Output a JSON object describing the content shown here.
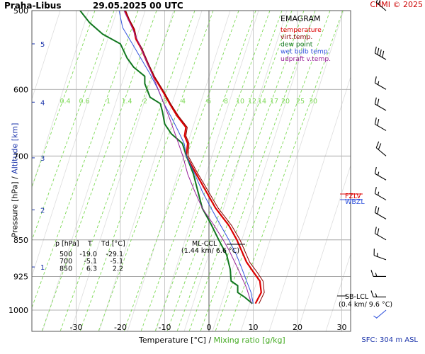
{
  "header": {
    "station": "Praha-Libus",
    "datetime": "29.05.2025 00 UTC",
    "credit": "CHMI © 2025"
  },
  "axes": {
    "pressure_label": "Pressure [hPa]",
    "altitude_label": "Altitude [km]",
    "temperature_label": "Temperature [°C]",
    "mixing_ratio_label": "Mixing ratio [g/kg]",
    "separator": "/"
  },
  "footer": {
    "surface": "SFC: 304 m ASL"
  },
  "table": {
    "headers": [
      "p [hPa]",
      "T",
      "Td [°C]"
    ],
    "rows": [
      [
        "500",
        "-19.0",
        "-29.1"
      ],
      [
        "700",
        "-5.1",
        "-5.1"
      ],
      [
        "850",
        "6.3",
        "2.2"
      ]
    ]
  },
  "annotations": {
    "ml_ccl": "ML-CCL",
    "ml_ccl_detail": "(1.44 km/ 6.6 °C)",
    "sb_lcl": "SB-LCL",
    "sb_lcl_detail": "(0.4 km/ 9.6 °C)",
    "fzl": "FZLV",
    "wbzl": "WBZL"
  },
  "colors": {
    "temperature": "#dd0000",
    "virtual_temperature": "#880000",
    "dew_point": "#11771f",
    "wet_bulb": "#3355dd",
    "updraft": "#992299",
    "mixing_ratio": "#7ed957",
    "grid": "#999999",
    "altitude": "#1a33aa"
  },
  "chart_data": {
    "type": "line",
    "title": "EMAGRAM",
    "xlabel": "Temperature [°C]",
    "ylabel": "Pressure [hPa]",
    "xlim": [
      -35,
      35
    ],
    "ylim": [
      1000,
      500
    ],
    "x_ticks": [
      -30,
      -20,
      -10,
      0,
      10,
      20,
      30
    ],
    "pressure_ticks": [
      500,
      600,
      700,
      850,
      925,
      1000
    ],
    "altitude_ticks": [
      {
        "label": "1",
        "p": 905
      },
      {
        "label": "2",
        "p": 793
      },
      {
        "label": "3",
        "p": 703
      },
      {
        "label": "4",
        "p": 618
      },
      {
        "label": "5",
        "p": 540
      }
    ],
    "mixing_ratio_labels": [
      "0.4",
      "0.6",
      "1",
      "1.4",
      "2",
      "3",
      "4",
      "6",
      "8",
      "10",
      "12",
      "14",
      "17",
      "20",
      "25",
      "30"
    ],
    "legend": [
      {
        "name": "temperature",
        "color": "#dd0000"
      },
      {
        "name": "virt.temp.",
        "color": "#880000"
      },
      {
        "name": "dew point",
        "color": "#11771f"
      },
      {
        "name": "wet bulb temp.",
        "color": "#3355dd"
      },
      {
        "name": "udpraft v.temp.",
        "color": "#992299"
      }
    ],
    "series": [
      {
        "key": "temperature",
        "color": "#dd0000",
        "width": 2.2,
        "points": [
          [
            10.5,
            985
          ],
          [
            11.8,
            960
          ],
          [
            11.5,
            935
          ],
          [
            10,
            915
          ],
          [
            8.5,
            895
          ],
          [
            6.3,
            850
          ],
          [
            4.5,
            822
          ],
          [
            1.5,
            790
          ],
          [
            -1,
            755
          ],
          [
            -3,
            728
          ],
          [
            -5.1,
            700
          ],
          [
            -4.8,
            680
          ],
          [
            -5.5,
            668
          ],
          [
            -5.2,
            655
          ],
          [
            -7.2,
            638
          ],
          [
            -8.7,
            622
          ],
          [
            -10.3,
            604
          ],
          [
            -12.5,
            582
          ],
          [
            -13.8,
            566
          ],
          [
            -15.3,
            546
          ],
          [
            -16.5,
            534
          ],
          [
            -17,
            522
          ],
          [
            -18.2,
            510
          ],
          [
            -19,
            500
          ]
        ]
      },
      {
        "key": "virtual_temperature",
        "color": "#880000",
        "width": 1,
        "points": [
          [
            11.3,
            985
          ],
          [
            12.5,
            960
          ],
          [
            12.2,
            935
          ],
          [
            10.8,
            915
          ],
          [
            9.2,
            895
          ],
          [
            7,
            850
          ],
          [
            5.1,
            822
          ],
          [
            2.1,
            790
          ],
          [
            -0.5,
            755
          ],
          [
            -2.6,
            728
          ],
          [
            -4.7,
            700
          ],
          [
            -4.5,
            680
          ],
          [
            -5.2,
            668
          ],
          [
            -4.9,
            655
          ],
          [
            -6.9,
            638
          ],
          [
            -8.5,
            622
          ],
          [
            -10.1,
            604
          ],
          [
            -12.3,
            582
          ],
          [
            -13.6,
            566
          ],
          [
            -15.1,
            546
          ],
          [
            -16.3,
            534
          ],
          [
            -16.8,
            522
          ],
          [
            -18,
            510
          ],
          [
            -18.8,
            500
          ]
        ]
      },
      {
        "key": "dew_point",
        "color": "#11771f",
        "width": 2,
        "points": [
          [
            9.8,
            985
          ],
          [
            8,
            970
          ],
          [
            6.5,
            960
          ],
          [
            6.5,
            945
          ],
          [
            5,
            935
          ],
          [
            4.8,
            910
          ],
          [
            4,
            880
          ],
          [
            2.2,
            850
          ],
          [
            0.5,
            820
          ],
          [
            -1.5,
            790
          ],
          [
            -2.5,
            760
          ],
          [
            -3.5,
            730
          ],
          [
            -5.1,
            700
          ],
          [
            -6,
            680
          ],
          [
            -8.5,
            665
          ],
          [
            -10,
            650
          ],
          [
            -10.5,
            632
          ],
          [
            -11,
            620
          ],
          [
            -13.3,
            611
          ],
          [
            -14.5,
            592
          ],
          [
            -14.5,
            582
          ],
          [
            -17,
            570
          ],
          [
            -18.5,
            558
          ],
          [
            -20,
            540
          ],
          [
            -24,
            528
          ],
          [
            -27,
            514
          ],
          [
            -29.1,
            500
          ]
        ]
      },
      {
        "key": "wet_bulb",
        "color": "#3355dd",
        "width": 1,
        "points": [
          [
            10,
            985
          ],
          [
            9.5,
            960
          ],
          [
            8.5,
            935
          ],
          [
            7.5,
            910
          ],
          [
            6.2,
            880
          ],
          [
            4.5,
            850
          ],
          [
            2.5,
            820
          ],
          [
            0.5,
            790
          ],
          [
            -1.5,
            760
          ],
          [
            -3.2,
            730
          ],
          [
            -5.1,
            700
          ],
          [
            -5.6,
            680
          ],
          [
            -7,
            660
          ],
          [
            -8.5,
            640
          ],
          [
            -10.2,
            620
          ],
          [
            -11.5,
            600
          ],
          [
            -13.2,
            580
          ],
          [
            -15.2,
            560
          ],
          [
            -17.3,
            540
          ],
          [
            -19.5,
            520
          ],
          [
            -20.3,
            500
          ]
        ]
      },
      {
        "key": "updraft",
        "color": "#992299",
        "width": 1,
        "points": [
          [
            9.6,
            985
          ],
          [
            8.5,
            950
          ],
          [
            6.6,
            910
          ],
          [
            4.5,
            870
          ],
          [
            3.2,
            850
          ],
          [
            1,
            820
          ],
          [
            -1.5,
            790
          ],
          [
            -3.2,
            760
          ],
          [
            -4.8,
            730
          ],
          [
            -5.9,
            700
          ],
          [
            -7.4,
            670
          ],
          [
            -9,
            640
          ],
          [
            -10.8,
            610
          ],
          [
            -12.8,
            580
          ],
          [
            -15,
            550
          ],
          [
            -17.4,
            520
          ],
          [
            -19.2,
            500
          ]
        ]
      }
    ],
    "wind_barbs": [
      {
        "p": 500,
        "dir": 310,
        "speed_kt": 20
      },
      {
        "p": 560,
        "dir": 300,
        "speed_kt": 40
      },
      {
        "p": 600,
        "dir": 300,
        "speed_kt": 15
      },
      {
        "p": 630,
        "dir": 300,
        "speed_kt": 20
      },
      {
        "p": 660,
        "dir": 300,
        "speed_kt": 20
      },
      {
        "p": 700,
        "dir": 310,
        "speed_kt": 20
      },
      {
        "p": 740,
        "dir": 300,
        "speed_kt": 15
      },
      {
        "p": 775,
        "dir": 300,
        "speed_kt": 15
      },
      {
        "p": 810,
        "dir": 300,
        "speed_kt": 20
      },
      {
        "p": 850,
        "dir": 300,
        "speed_kt": 20
      },
      {
        "p": 890,
        "dir": 290,
        "speed_kt": 15
      },
      {
        "p": 925,
        "dir": 270,
        "speed_kt": 15
      },
      {
        "p": 970,
        "dir": 270,
        "speed_kt": 15
      },
      {
        "p": 1000,
        "dir": 230,
        "speed_kt": 5
      }
    ]
  }
}
